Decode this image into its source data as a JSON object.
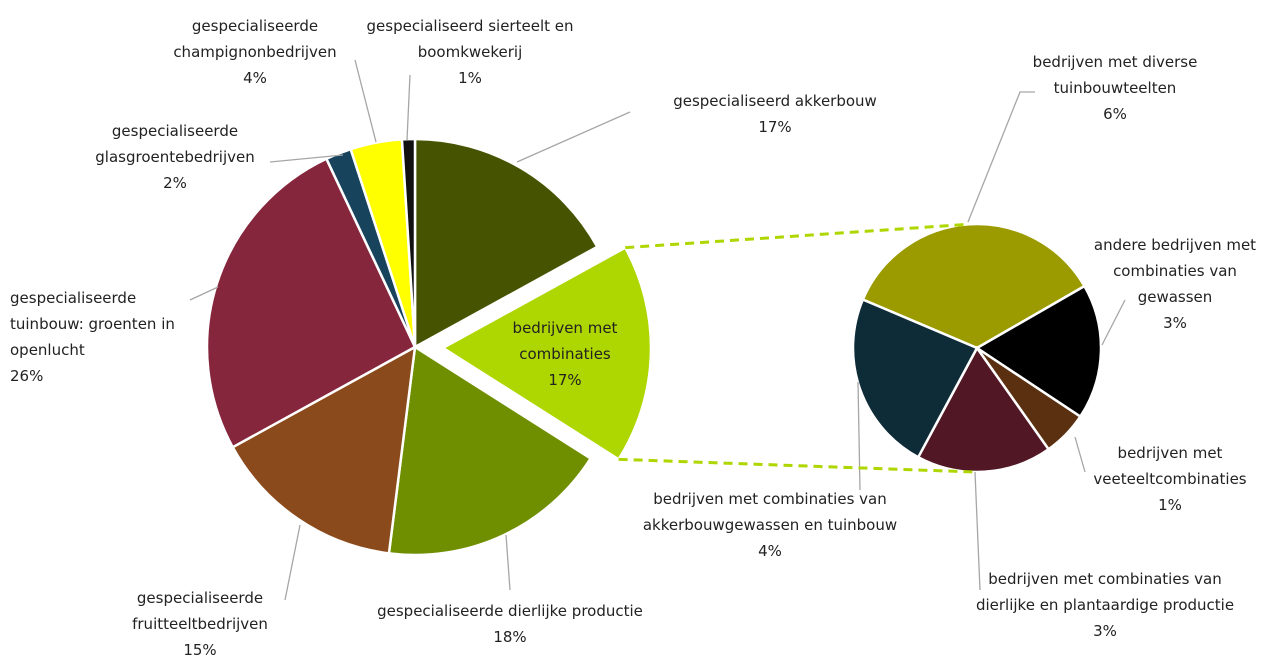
{
  "chart_data": [
    {
      "type": "pie",
      "categories": [
        "gespecialiseerd akkerbouw",
        "bedrijven met combinaties",
        "gespecialiseerde dierlijke productie",
        "gespecialiseerde fruitteeltbedrijven",
        "gespecialiseerde tuinbouw: groenten in openlucht",
        "gespecialiseerde glasgroentebedrijven",
        "gespecialiseerde champignonbedrijven",
        "gespecialiseerd sierteelt en boomkwekerij"
      ],
      "values": [
        17,
        17,
        18,
        15,
        26,
        2,
        4,
        1
      ],
      "value_labels": [
        "17%",
        "17%",
        "18%",
        "15%",
        "26%",
        "2%",
        "4%",
        "1%"
      ],
      "colors": [
        "#465300",
        "#aed600",
        "#6f8f00",
        "#8b4a1b",
        "#86263c",
        "#17435d",
        "#ffff00",
        "#111111"
      ]
    },
    {
      "type": "pie",
      "categories": [
        "bedrijven met diverse tuinbouwteelten",
        "andere bedrijven met combinaties van gewassen",
        "bedrijven met veeteeltcombinaties",
        "bedrijven met combinaties van dierlijke en plantaardige productie",
        "bedrijven met combinaties van akkerbouwgewassen en tuinbouw"
      ],
      "values": [
        6,
        3,
        1,
        3,
        4
      ],
      "value_labels": [
        "6%",
        "3%",
        "1%",
        "3%",
        "4%"
      ],
      "colors": [
        "#9b9b00",
        "#000000",
        "#5a3010",
        "#521725",
        "#0e2b38"
      ]
    }
  ]
}
